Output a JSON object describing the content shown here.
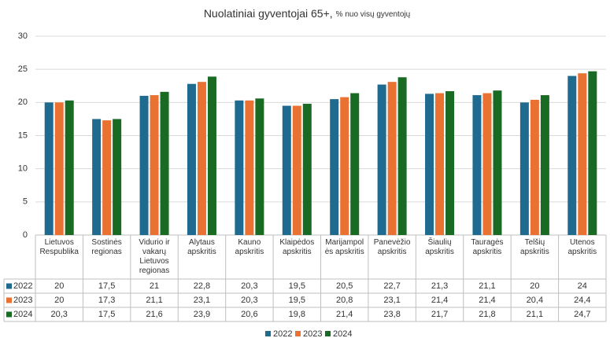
{
  "chart_data": {
    "type": "bar",
    "title": "Nuolatiniai gyventojai 65+,",
    "subtitle": "% nuo visų gyventojų",
    "categories": [
      "Lietuvos Respublika",
      "Sostinės regionas",
      "Vidurio ir vakarų Lietuvos regionas",
      "Alytaus apskritis",
      "Kauno apskritis",
      "Klaipėdos apskritis",
      "Marijampolės apskritis",
      "Panevėžio apskritis",
      "Šiaulių apskritis",
      "Tauragės apskritis",
      "Telšių apskritis",
      "Utenos apskritis"
    ],
    "series": [
      {
        "name": "2022",
        "color": "#1f6b8f",
        "values": [
          20,
          17.5,
          21,
          22.8,
          20.3,
          19.5,
          20.5,
          22.7,
          21.3,
          21.1,
          20,
          24
        ],
        "value_labels": [
          "20",
          "17,5",
          "21",
          "22,8",
          "20,3",
          "19,5",
          "20,5",
          "22,7",
          "21,3",
          "21,1",
          "20",
          "24"
        ]
      },
      {
        "name": "2023",
        "color": "#e97132",
        "values": [
          20,
          17.3,
          21.1,
          23.1,
          20.3,
          19.5,
          20.8,
          23.1,
          21.4,
          21.4,
          20.4,
          24.4
        ],
        "value_labels": [
          "20",
          "17,3",
          "21,1",
          "23,1",
          "20,3",
          "19,5",
          "20,8",
          "23,1",
          "21,4",
          "21,4",
          "20,4",
          "24,4"
        ]
      },
      {
        "name": "2024",
        "color": "#196b24",
        "values": [
          20.3,
          17.5,
          21.6,
          23.9,
          20.6,
          19.8,
          21.4,
          23.8,
          21.7,
          21.8,
          21.1,
          24.7
        ],
        "value_labels": [
          "20,3",
          "17,5",
          "21,6",
          "23,9",
          "20,6",
          "19,8",
          "21,4",
          "23,8",
          "21,7",
          "21,8",
          "21,1",
          "24,7"
        ]
      }
    ],
    "ylim": [
      0,
      30
    ],
    "yticks": [
      0,
      5,
      10,
      15,
      20,
      25,
      30
    ],
    "grid": true
  }
}
